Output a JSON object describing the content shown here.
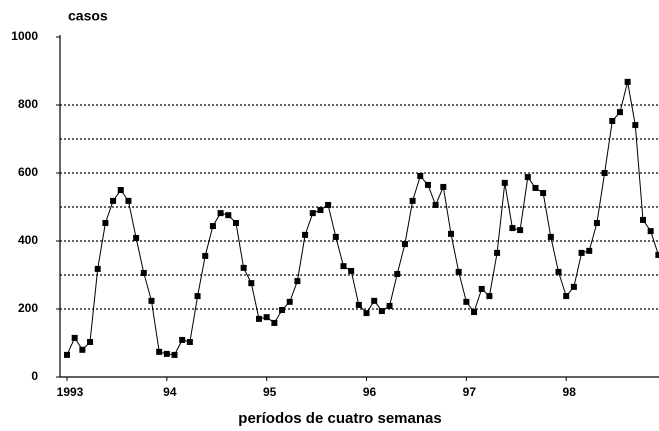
{
  "chart_data": {
    "type": "line",
    "ylabel": "casos",
    "xlabel": "períodos de cuatro semanas",
    "categories": [
      "1993",
      null,
      null,
      null,
      null,
      null,
      null,
      null,
      null,
      null,
      null,
      null,
      null,
      "94",
      null,
      null,
      null,
      null,
      null,
      null,
      null,
      null,
      null,
      null,
      null,
      null,
      "95",
      null,
      null,
      null,
      null,
      null,
      null,
      null,
      null,
      null,
      null,
      null,
      null,
      "96",
      null,
      null,
      null,
      null,
      null,
      null,
      null,
      null,
      null,
      null,
      null,
      null,
      "97",
      null,
      null,
      null,
      null,
      null,
      null,
      null,
      null,
      null,
      null,
      null,
      null,
      "98",
      null,
      null,
      null,
      null,
      null,
      null,
      null,
      null,
      null,
      null,
      null,
      null
    ],
    "series": [
      {
        "color": "#000000",
        "values": [
          65,
          115,
          80,
          103,
          318,
          453,
          518,
          550,
          518,
          409,
          306,
          224,
          74,
          68,
          65,
          109,
          103,
          238,
          356,
          444,
          482,
          476,
          453,
          321,
          276,
          171,
          176,
          159,
          197,
          221,
          282,
          418,
          482,
          491,
          506,
          412,
          326,
          312,
          212,
          188,
          224,
          194,
          209,
          303,
          391,
          518,
          591,
          565,
          506,
          559,
          421,
          309,
          221,
          191,
          259,
          238,
          365,
          571,
          438,
          432,
          588,
          556,
          541,
          412,
          309,
          238,
          265,
          365,
          371,
          453,
          600,
          753,
          779,
          868,
          741,
          462,
          429,
          359
        ]
      }
    ],
    "ylim": [
      0,
      1000
    ],
    "yticks": [
      0,
      200,
      400,
      600,
      800,
      1000
    ],
    "ygrid": [
      200,
      300,
      400,
      500,
      600,
      700,
      800
    ]
  }
}
